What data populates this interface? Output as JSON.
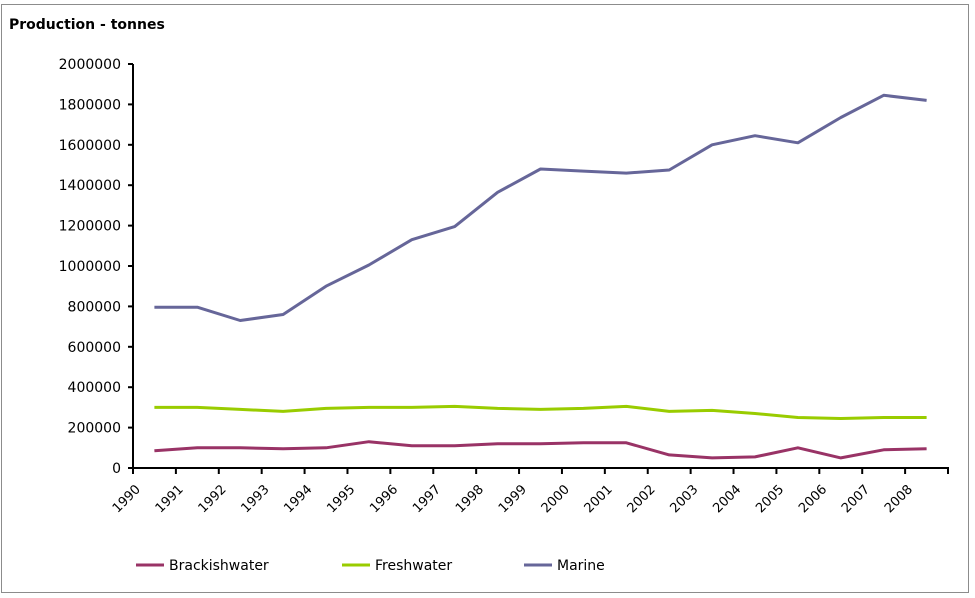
{
  "chart_data": {
    "type": "line",
    "title": "Production - tonnes",
    "xlabel": "",
    "ylabel": "",
    "ylim": [
      0,
      2000000
    ],
    "yticks": [
      "0",
      "200000",
      "400000",
      "600000",
      "800000",
      "1000000",
      "1200000",
      "1400000",
      "1600000",
      "1800000",
      "2000000"
    ],
    "grid": false,
    "legend_position": "bottom",
    "categories": [
      "1990",
      "1991",
      "1992",
      "1993",
      "1994",
      "1995",
      "1996",
      "1997",
      "1998",
      "1999",
      "2000",
      "2001",
      "2002",
      "2003",
      "2004",
      "2005",
      "2006",
      "2007",
      "2008"
    ],
    "series": [
      {
        "name": "Brackishwater",
        "color": "#993366",
        "values": [
          85000,
          100000,
          100000,
          95000,
          100000,
          130000,
          110000,
          110000,
          120000,
          120000,
          125000,
          125000,
          65000,
          50000,
          55000,
          100000,
          50000,
          90000,
          95000
        ]
      },
      {
        "name": "Freshwater",
        "color": "#99CC00",
        "values": [
          300000,
          300000,
          290000,
          280000,
          295000,
          300000,
          300000,
          305000,
          295000,
          290000,
          295000,
          305000,
          280000,
          285000,
          270000,
          250000,
          245000,
          250000,
          250000
        ]
      },
      {
        "name": "Marine",
        "color": "#666699",
        "values": [
          796000,
          796000,
          730000,
          760000,
          900000,
          1005000,
          1130000,
          1195000,
          1365000,
          1480000,
          1470000,
          1460000,
          1475000,
          1600000,
          1645000,
          1610000,
          1735000,
          1845000,
          1820000
        ]
      }
    ]
  }
}
